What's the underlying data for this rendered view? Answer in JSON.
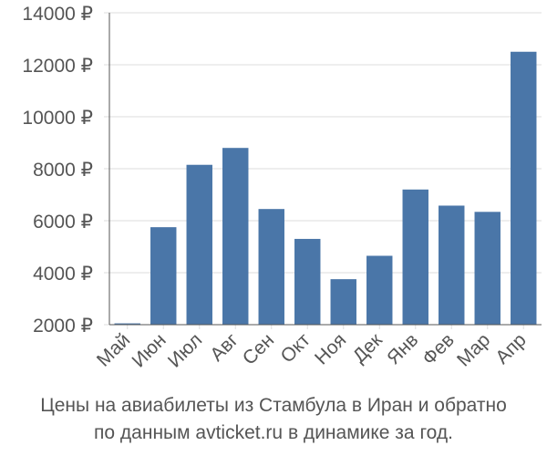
{
  "caption": {
    "line1": "Цены на авиабилеты из Стамбула в Иран и обратно",
    "line2": "по данным avticket.ru в динамике за год."
  },
  "colors": {
    "bar": "#4a76a8",
    "grid": "#dddddd",
    "axis": "#555555",
    "text": "#555555"
  },
  "chart_data": {
    "type": "bar",
    "categories": [
      "Май",
      "Июн",
      "Июл",
      "Авг",
      "Сен",
      "Окт",
      "Ноя",
      "Дек",
      "Янв",
      "Фев",
      "Мар",
      "Апр"
    ],
    "values": [
      2050,
      5750,
      8150,
      8800,
      6450,
      5300,
      3750,
      4650,
      7200,
      6580,
      6340,
      12500
    ],
    "yticks": [
      2000,
      4000,
      6000,
      8000,
      10000,
      12000,
      14000
    ],
    "ytick_labels": [
      "2000 ₽",
      "4000 ₽",
      "6000 ₽",
      "8000 ₽",
      "10000 ₽",
      "12000 ₽",
      "14000 ₽"
    ],
    "ylim": [
      2000,
      14000
    ],
    "grid": true,
    "legend": "none"
  }
}
